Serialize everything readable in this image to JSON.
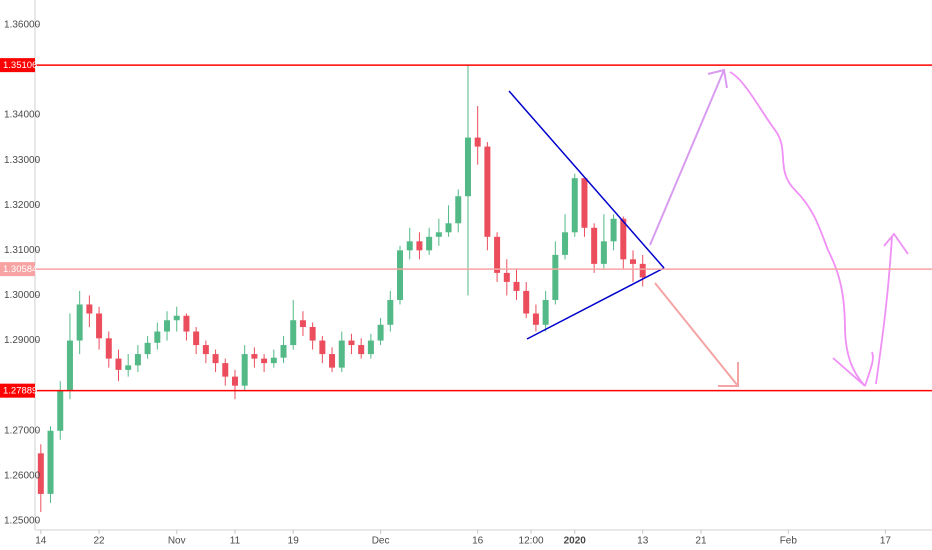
{
  "chart_data": {
    "type": "candlestick",
    "up_color": "#53b987",
    "down_color": "#eb4d5c",
    "x": [
      0,
      1,
      2,
      3,
      4,
      5,
      6,
      7,
      8,
      9,
      10,
      11,
      12,
      13,
      14,
      15,
      16,
      17,
      18,
      19,
      20,
      21,
      22,
      23,
      24,
      25,
      26,
      27,
      28,
      29,
      30,
      31,
      32,
      33,
      34,
      35,
      36,
      37,
      38,
      39,
      40,
      41,
      42,
      43,
      44,
      45,
      46,
      47,
      48,
      49,
      50,
      51,
      52,
      53,
      54,
      55,
      56,
      57,
      58,
      59,
      60,
      61,
      62
    ],
    "open": [
      1.265,
      1.256,
      1.27,
      1.279,
      1.29,
      1.298,
      1.296,
      1.2905,
      1.286,
      1.2835,
      1.2845,
      1.287,
      1.2895,
      1.292,
      1.2945,
      1.2955,
      1.292,
      1.289,
      1.287,
      1.285,
      1.282,
      1.28,
      1.287,
      1.286,
      1.285,
      1.2862,
      1.289,
      1.2945,
      1.293,
      1.29,
      1.287,
      1.284,
      1.29,
      1.289,
      1.287,
      1.29,
      1.2935,
      1.299,
      1.31,
      1.312,
      1.31,
      1.313,
      1.314,
      1.316,
      1.322,
      1.335,
      1.333,
      1.313,
      1.305,
      1.303,
      1.301,
      1.296,
      1.2935,
      1.299,
      1.309,
      1.314,
      1.326,
      1.315,
      1.307,
      1.312,
      1.317,
      1.308,
      1.307
    ],
    "high": [
      1.267,
      1.271,
      1.281,
      1.296,
      1.301,
      1.3,
      1.2975,
      1.292,
      1.288,
      1.287,
      1.289,
      1.291,
      1.294,
      1.2965,
      1.2975,
      1.296,
      1.293,
      1.29,
      1.288,
      1.286,
      1.2835,
      1.289,
      1.2885,
      1.287,
      1.288,
      1.291,
      1.299,
      1.2965,
      1.294,
      1.291,
      1.2885,
      1.292,
      1.2915,
      1.2905,
      1.2915,
      1.295,
      1.301,
      1.311,
      1.315,
      1.314,
      1.315,
      1.317,
      1.32,
      1.3235,
      1.351,
      1.342,
      1.334,
      1.314,
      1.308,
      1.306,
      1.303,
      1.298,
      1.301,
      1.312,
      1.318,
      1.327,
      1.325,
      1.316,
      1.318,
      1.318,
      1.3175,
      1.31,
      1.309
    ],
    "low": [
      1.252,
      1.254,
      1.268,
      1.277,
      1.287,
      1.293,
      1.288,
      1.284,
      1.281,
      1.282,
      1.283,
      1.286,
      1.288,
      1.29,
      1.292,
      1.29,
      1.287,
      1.285,
      1.283,
      1.28,
      1.277,
      1.279,
      1.284,
      1.283,
      1.284,
      1.285,
      1.288,
      1.291,
      1.288,
      1.285,
      1.283,
      1.283,
      1.287,
      1.286,
      1.286,
      1.289,
      1.292,
      1.298,
      1.308,
      1.308,
      1.309,
      1.311,
      1.313,
      1.314,
      1.3,
      1.329,
      1.31,
      1.303,
      1.3,
      1.299,
      1.295,
      1.292,
      1.292,
      1.298,
      1.308,
      1.313,
      1.313,
      1.305,
      1.306,
      1.31,
      1.306,
      1.303,
      1.302
    ],
    "close": [
      1.256,
      1.27,
      1.279,
      1.29,
      1.298,
      1.296,
      1.2905,
      1.286,
      1.2835,
      1.2845,
      1.287,
      1.2895,
      1.292,
      1.2945,
      1.2955,
      1.292,
      1.289,
      1.287,
      1.285,
      1.282,
      1.28,
      1.287,
      1.286,
      1.285,
      1.2862,
      1.289,
      1.2945,
      1.293,
      1.29,
      1.287,
      1.284,
      1.29,
      1.289,
      1.287,
      1.29,
      1.2935,
      1.299,
      1.31,
      1.312,
      1.31,
      1.313,
      1.314,
      1.316,
      1.322,
      1.335,
      1.333,
      1.313,
      1.305,
      1.303,
      1.301,
      1.296,
      1.2935,
      1.299,
      1.309,
      1.314,
      1.326,
      1.315,
      1.307,
      1.312,
      1.317,
      1.308,
      1.307,
      1.304
    ],
    "xlim": [
      -0.6,
      91.8
    ],
    "xticks": [
      {
        "value": 0,
        "label": "14"
      },
      {
        "value": 6,
        "label": "22"
      },
      {
        "value": 14,
        "label": "Nov"
      },
      {
        "value": 20,
        "label": "11"
      },
      {
        "value": 26,
        "label": "19"
      },
      {
        "value": 35,
        "label": "Dec"
      },
      {
        "value": 45,
        "label": "16"
      },
      {
        "value": 50.5,
        "label": "12:00"
      },
      {
        "value": 55,
        "label": "2020"
      },
      {
        "value": 62,
        "label": "13"
      },
      {
        "value": 68,
        "label": "21"
      },
      {
        "value": 77,
        "label": "Feb"
      },
      {
        "value": 87,
        "label": "17"
      }
    ],
    "ylim": [
      1.248,
      1.3655
    ],
    "yticks": [
      {
        "value": 1.25,
        "label": "1.25000"
      },
      {
        "value": 1.26,
        "label": "1.26000"
      },
      {
        "value": 1.27,
        "label": "1.27000"
      },
      {
        "value": 1.29,
        "label": "1.29000"
      },
      {
        "value": 1.3,
        "label": "1.30000"
      },
      {
        "value": 1.31,
        "label": "1.31000"
      },
      {
        "value": 1.32,
        "label": "1.32000"
      },
      {
        "value": 1.33,
        "label": "1.33000"
      },
      {
        "value": 1.34,
        "label": "1.34000"
      },
      {
        "value": 1.36,
        "label": "1.36000"
      }
    ],
    "levels": [
      {
        "value": 1.35106,
        "color": "#ff0000"
      },
      {
        "value": 1.30584,
        "color": "#f7a3a3"
      },
      {
        "value": 1.27889,
        "color": "#ff0000"
      }
    ]
  }
}
